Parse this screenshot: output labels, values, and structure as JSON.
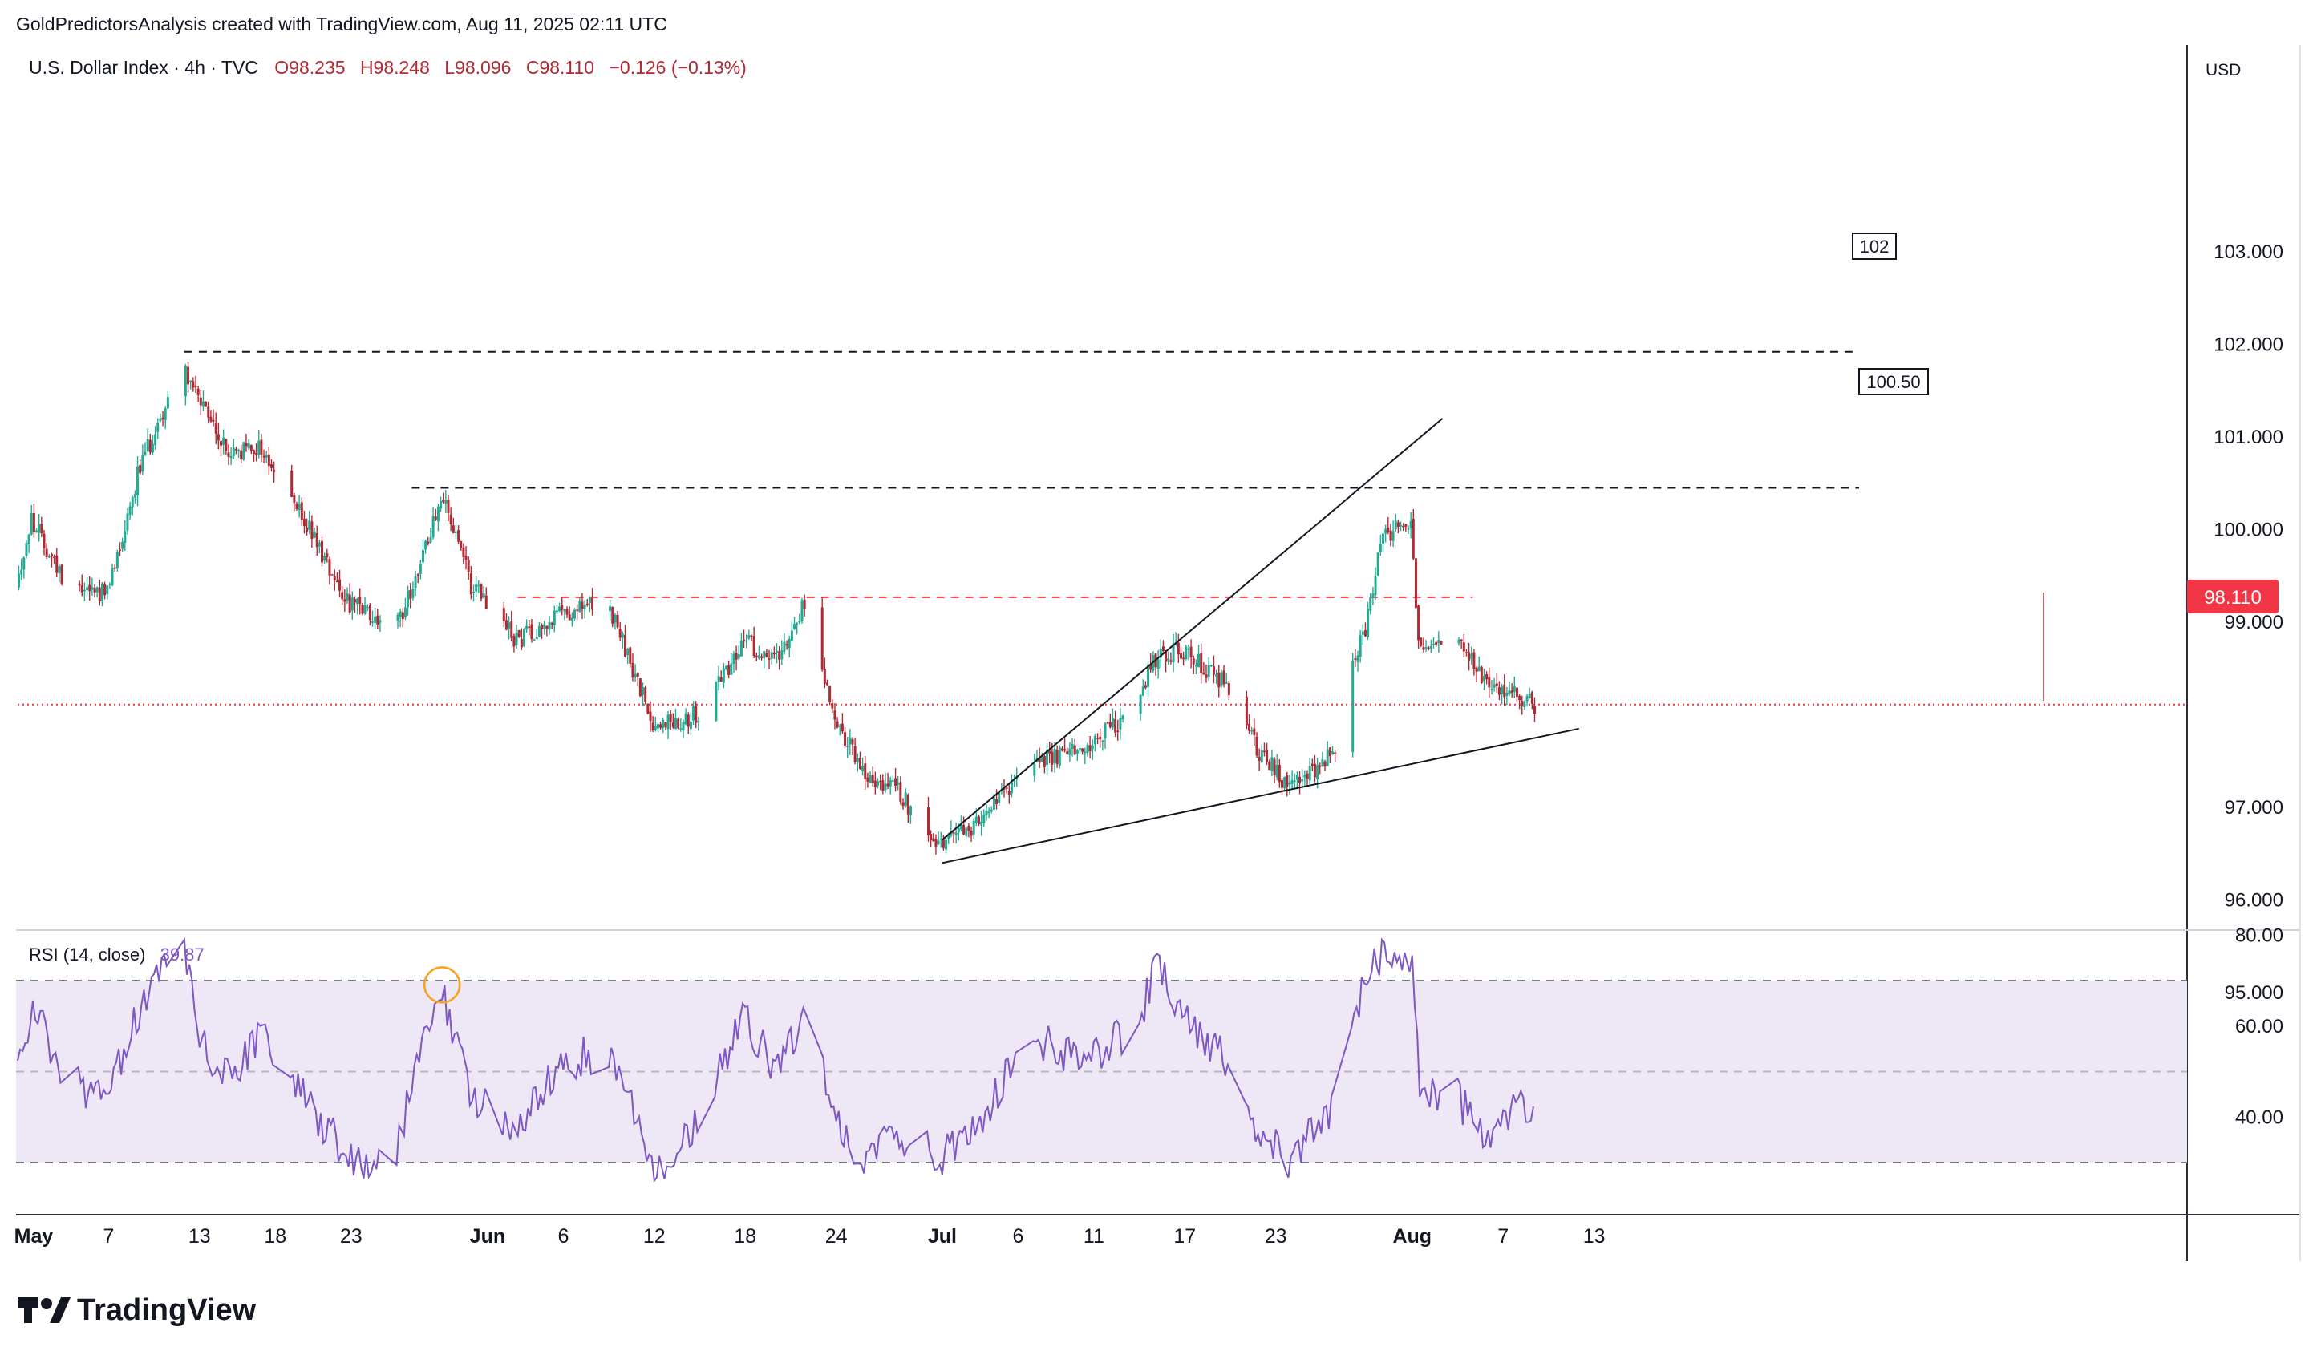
{
  "header": {
    "credit": "GoldPredictorsAnalysis created with TradingView.com, Aug 11, 2025 02:11 UTC"
  },
  "legend": {
    "symbol": "U.S. Dollar Index · 4h · TVC",
    "open": "O98.235",
    "high": "H98.248",
    "low": "L98.096",
    "close": "C98.110",
    "change": "−0.126 (−0.13%)"
  },
  "price_axis": {
    "currency": "USD",
    "ticks": [
      "103.000",
      "102.000",
      "101.000",
      "100.000",
      "99.000",
      "97.000",
      "96.000",
      "95.000"
    ],
    "last_price": "98.110"
  },
  "rsi": {
    "label": "RSI (14, close)",
    "value": "39.87",
    "ticks": [
      "80.00",
      "60.00",
      "40.00"
    ]
  },
  "time_axis": {
    "labels": [
      "May",
      "7",
      "13",
      "18",
      "23",
      "Jun",
      "6",
      "12",
      "18",
      "24",
      "Jul",
      "6",
      "11",
      "17",
      "23",
      "Aug",
      "7",
      "13"
    ]
  },
  "annotations": {
    "level_102": "102",
    "level_10050": "100.50"
  },
  "footer": {
    "brand": "TradingView"
  },
  "colors": {
    "up": "#22ab94",
    "down": "#b22833",
    "rsi_line": "#7e57c2",
    "rsi_band": "#ede7f6",
    "last_price": "#f23645",
    "trendline": "#131722"
  },
  "chart_data": [
    {
      "type": "candlestick",
      "title": "U.S. Dollar Index · 4h · TVC",
      "y_unit": "USD",
      "ylim": [
        94.5,
        103.8
      ],
      "x_range": [
        "2025-05-01",
        "2025-08-15"
      ],
      "anchors": [
        {
          "t": "2025-05-01",
          "v": 99.4
        },
        {
          "t": "2025-05-02",
          "v": 100.1
        },
        {
          "t": "2025-05-04",
          "v": 99.5
        },
        {
          "t": "2025-05-07",
          "v": 99.3
        },
        {
          "t": "2025-05-09",
          "v": 100.6
        },
        {
          "t": "2025-05-12",
          "v": 101.8
        },
        {
          "t": "2025-05-13",
          "v": 101.4
        },
        {
          "t": "2025-05-15",
          "v": 100.8
        },
        {
          "t": "2025-05-17",
          "v": 100.9
        },
        {
          "t": "2025-05-20",
          "v": 100.1
        },
        {
          "t": "2025-05-23",
          "v": 99.2
        },
        {
          "t": "2025-05-26",
          "v": 98.9
        },
        {
          "t": "2025-05-28",
          "v": 99.8
        },
        {
          "t": "2025-05-29",
          "v": 100.4
        },
        {
          "t": "2025-05-31",
          "v": 99.4
        },
        {
          "t": "2025-06-03",
          "v": 98.8
        },
        {
          "t": "2025-06-06",
          "v": 99.1
        },
        {
          "t": "2025-06-09",
          "v": 99.2
        },
        {
          "t": "2025-06-12",
          "v": 97.9
        },
        {
          "t": "2025-06-15",
          "v": 98.0
        },
        {
          "t": "2025-06-18",
          "v": 98.8
        },
        {
          "t": "2025-06-20",
          "v": 98.6
        },
        {
          "t": "2025-06-22",
          "v": 99.2
        },
        {
          "t": "2025-06-24",
          "v": 98.0
        },
        {
          "t": "2025-06-26",
          "v": 97.3
        },
        {
          "t": "2025-06-28",
          "v": 97.2
        },
        {
          "t": "2025-07-01",
          "v": 96.6
        },
        {
          "t": "2025-07-04",
          "v": 96.9
        },
        {
          "t": "2025-07-07",
          "v": 97.5
        },
        {
          "t": "2025-07-10",
          "v": 97.6
        },
        {
          "t": "2025-07-14",
          "v": 98.1
        },
        {
          "t": "2025-07-15",
          "v": 98.6
        },
        {
          "t": "2025-07-17",
          "v": 98.7
        },
        {
          "t": "2025-07-20",
          "v": 98.3
        },
        {
          "t": "2025-07-22",
          "v": 97.6
        },
        {
          "t": "2025-07-24",
          "v": 97.2
        },
        {
          "t": "2025-07-27",
          "v": 97.6
        },
        {
          "t": "2025-07-28",
          "v": 98.6
        },
        {
          "t": "2025-07-29",
          "v": 98.9
        },
        {
          "t": "2025-07-30",
          "v": 99.9
        },
        {
          "t": "2025-08-01",
          "v": 100.1
        },
        {
          "t": "2025-08-01T12",
          "v": 98.8
        },
        {
          "t": "2025-08-04",
          "v": 98.8
        },
        {
          "t": "2025-08-06",
          "v": 98.3
        },
        {
          "t": "2025-08-08",
          "v": 98.2
        },
        {
          "t": "2025-08-09",
          "v": 98.11
        }
      ],
      "horizontal_levels": [
        {
          "label": "102",
          "value": 101.92,
          "from": "2025-05-12",
          "to": "2025-08-01",
          "style": "dashed",
          "color": "#131722"
        },
        {
          "label": "100.50",
          "value": 100.45,
          "from": "2025-05-27",
          "to": "2025-08-01",
          "style": "dashed",
          "color": "#131722"
        },
        {
          "value": 99.27,
          "from": "2025-06-03",
          "to": "2025-08-05",
          "style": "dashed",
          "color": "#f23645"
        },
        {
          "value": 98.11,
          "from": "2025-05-01",
          "to": "2025-08-15",
          "style": "dotted",
          "color": "#f23645"
        }
      ],
      "trendlines": [
        {
          "from": {
            "t": "2025-07-01",
            "v": 96.65
          },
          "to": {
            "t": "2025-08-03",
            "v": 101.2
          }
        },
        {
          "from": {
            "t": "2025-07-01",
            "v": 96.4
          },
          "to": {
            "t": "2025-08-12",
            "v": 97.85
          }
        }
      ]
    },
    {
      "type": "line",
      "title": "RSI (14, close)",
      "ylim": [
        20,
        82
      ],
      "bands": [
        30,
        50,
        70
      ],
      "anchors": [
        {
          "t": "2025-05-01",
          "v": 48
        },
        {
          "t": "2025-05-02",
          "v": 66
        },
        {
          "t": "2025-05-04",
          "v": 48
        },
        {
          "t": "2025-05-07",
          "v": 44
        },
        {
          "t": "2025-05-09",
          "v": 64
        },
        {
          "t": "2025-05-12",
          "v": 78
        },
        {
          "t": "2025-05-13",
          "v": 56
        },
        {
          "t": "2025-05-15",
          "v": 48
        },
        {
          "t": "2025-05-17",
          "v": 58
        },
        {
          "t": "2025-05-20",
          "v": 44
        },
        {
          "t": "2025-05-23",
          "v": 30
        },
        {
          "t": "2025-05-26",
          "v": 33
        },
        {
          "t": "2025-05-28",
          "v": 62
        },
        {
          "t": "2025-05-29",
          "v": 68
        },
        {
          "t": "2025-05-31",
          "v": 44
        },
        {
          "t": "2025-06-03",
          "v": 37
        },
        {
          "t": "2025-06-06",
          "v": 52
        },
        {
          "t": "2025-06-09",
          "v": 55
        },
        {
          "t": "2025-06-12",
          "v": 28
        },
        {
          "t": "2025-06-15",
          "v": 40
        },
        {
          "t": "2025-06-18",
          "v": 62
        },
        {
          "t": "2025-06-20",
          "v": 50
        },
        {
          "t": "2025-06-22",
          "v": 64
        },
        {
          "t": "2025-06-24",
          "v": 38
        },
        {
          "t": "2025-06-26",
          "v": 31
        },
        {
          "t": "2025-06-28",
          "v": 36
        },
        {
          "t": "2025-07-01",
          "v": 31
        },
        {
          "t": "2025-07-04",
          "v": 42
        },
        {
          "t": "2025-07-07",
          "v": 58
        },
        {
          "t": "2025-07-10",
          "v": 52
        },
        {
          "t": "2025-07-14",
          "v": 60
        },
        {
          "t": "2025-07-15",
          "v": 74
        },
        {
          "t": "2025-07-17",
          "v": 62
        },
        {
          "t": "2025-07-20",
          "v": 52
        },
        {
          "t": "2025-07-22",
          "v": 36
        },
        {
          "t": "2025-07-24",
          "v": 30
        },
        {
          "t": "2025-07-27",
          "v": 44
        },
        {
          "t": "2025-07-28",
          "v": 62
        },
        {
          "t": "2025-07-29",
          "v": 70
        },
        {
          "t": "2025-07-30",
          "v": 76
        },
        {
          "t": "2025-08-01",
          "v": 74
        },
        {
          "t": "2025-08-01T12",
          "v": 46
        },
        {
          "t": "2025-08-04",
          "v": 44
        },
        {
          "t": "2025-08-06",
          "v": 34
        },
        {
          "t": "2025-08-08",
          "v": 43
        },
        {
          "t": "2025-08-09",
          "v": 39.87
        }
      ],
      "highlight": {
        "t": "2025-05-29",
        "v": 68
      }
    }
  ]
}
